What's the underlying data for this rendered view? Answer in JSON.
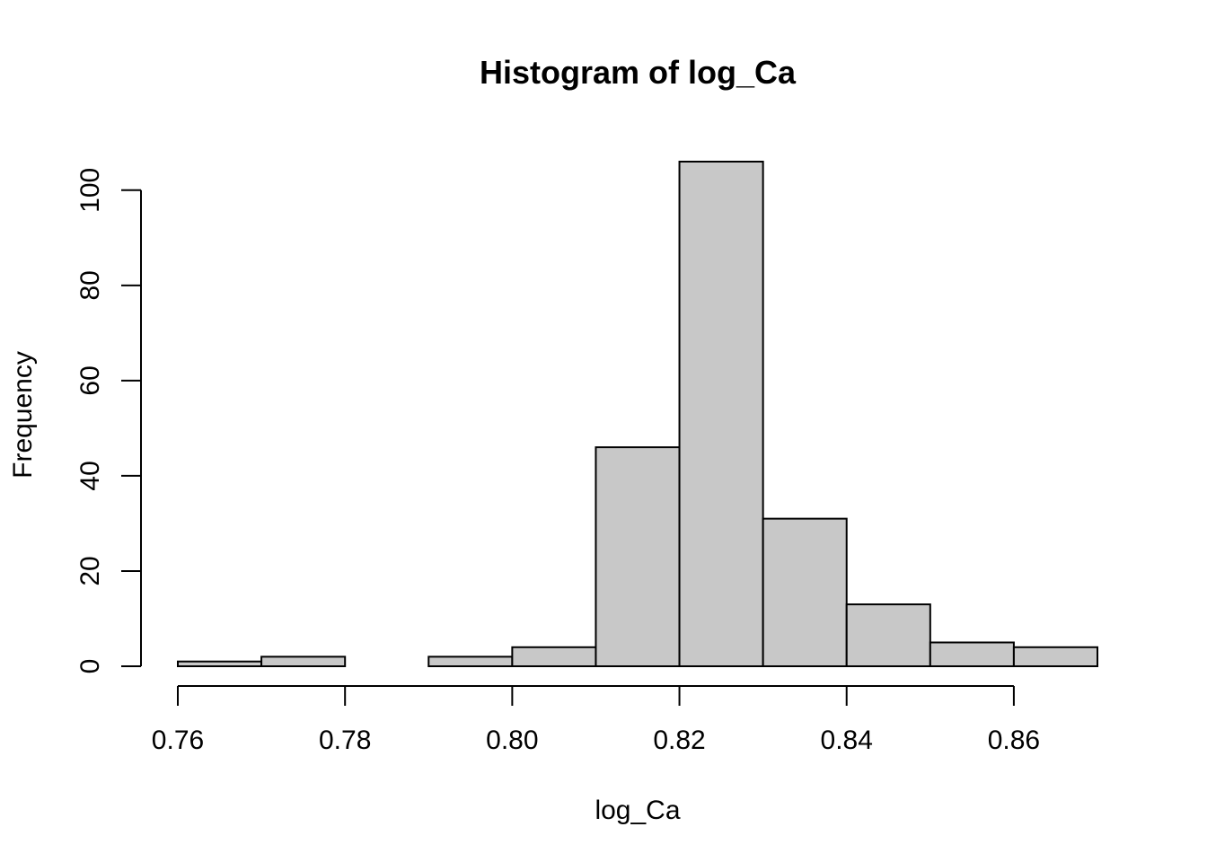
{
  "chart_data": {
    "type": "bar",
    "title": "Histogram of log_Ca",
    "xlabel": "log_Ca",
    "ylabel": "Frequency",
    "bin_edges": [
      0.76,
      0.77,
      0.78,
      0.79,
      0.8,
      0.81,
      0.82,
      0.83,
      0.84,
      0.85,
      0.86,
      0.87
    ],
    "values": [
      1,
      2,
      0,
      2,
      4,
      46,
      106,
      31,
      13,
      5,
      4
    ],
    "xlim": [
      0.76,
      0.87
    ],
    "ylim": [
      0,
      106
    ],
    "x_ticks": [
      0.76,
      0.78,
      0.8,
      0.82,
      0.84,
      0.86
    ],
    "x_tick_labels": [
      "0.76",
      "0.78",
      "0.80",
      "0.82",
      "0.84",
      "0.86"
    ],
    "y_ticks": [
      0,
      20,
      40,
      60,
      80,
      100
    ],
    "y_tick_labels": [
      "0",
      "20",
      "40",
      "60",
      "80",
      "100"
    ],
    "grid": false,
    "colors": {
      "bar_fill": "#c8c8c8",
      "bar_stroke": "#000000"
    }
  }
}
